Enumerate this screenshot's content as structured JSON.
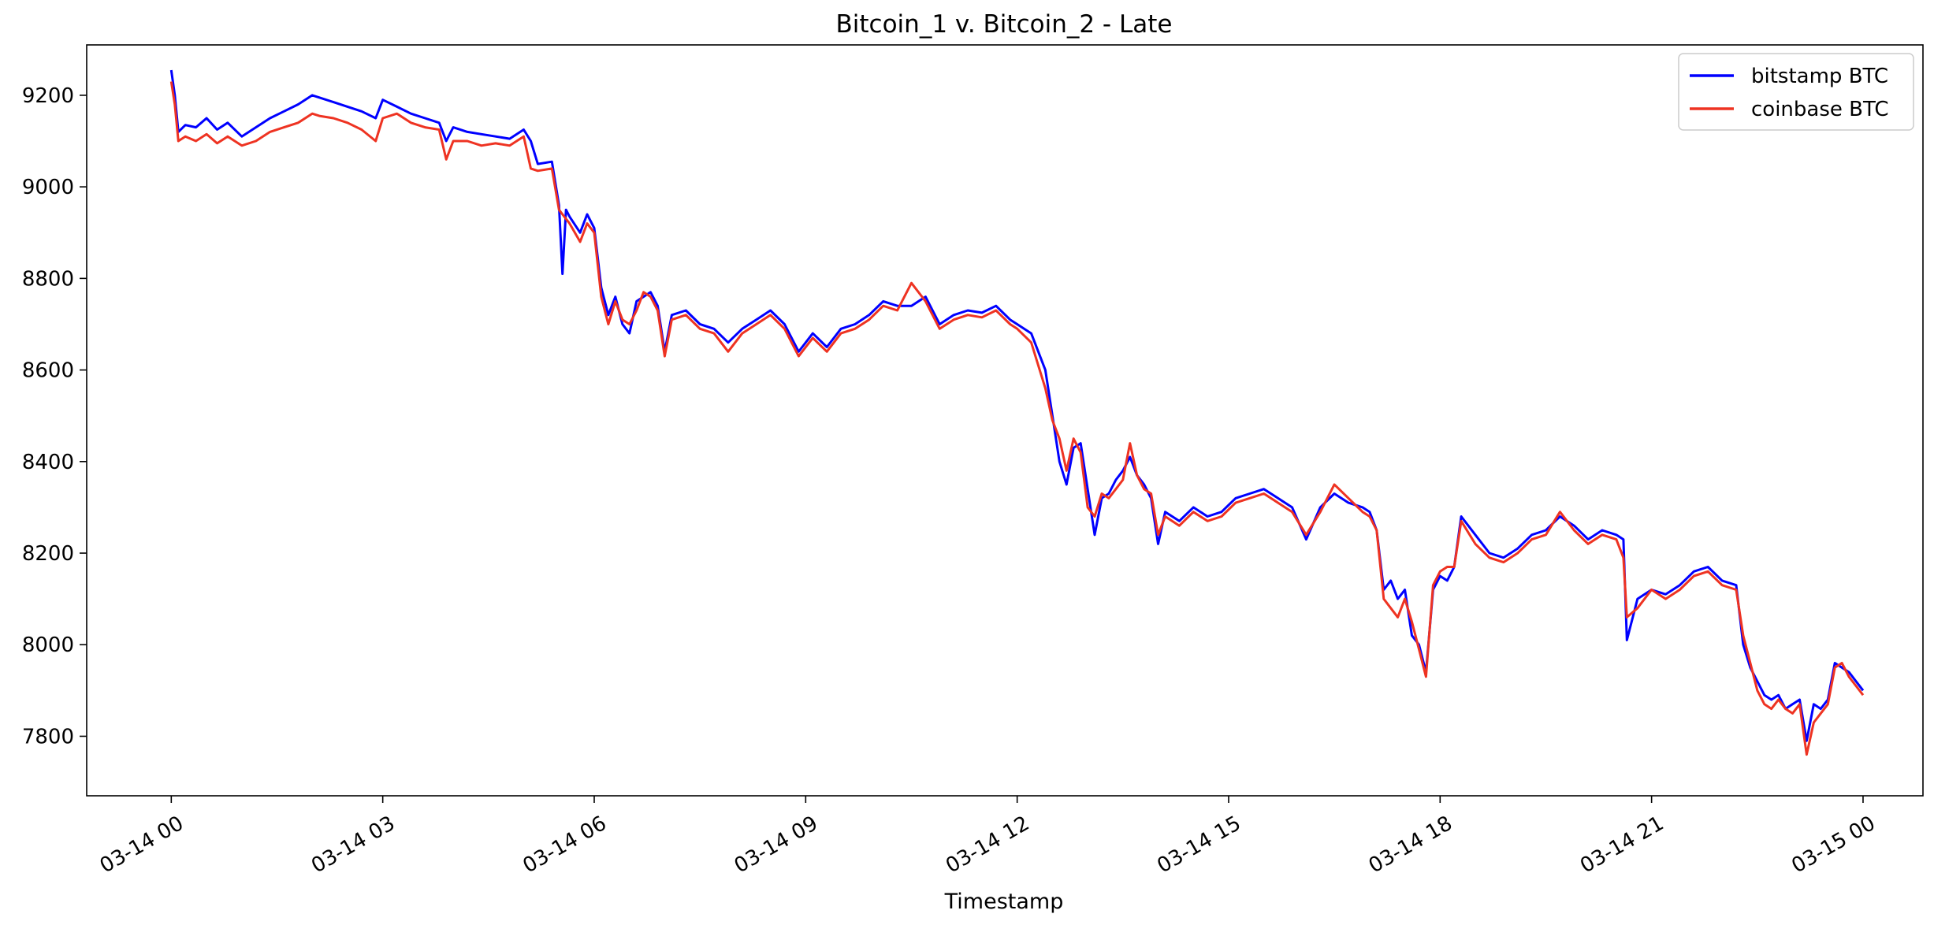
{
  "chart_data": {
    "type": "line",
    "title": "Bitcoin_1 v. Bitcoin_2 - Late",
    "xlabel": "Timestamp",
    "ylabel": "",
    "x_range_hours": [
      -1.2,
      24.85
    ],
    "ylim": [
      7670,
      9310
    ],
    "y_ticks": [
      7800,
      8000,
      8200,
      8400,
      8600,
      8800,
      9000,
      9200
    ],
    "x_ticks": [
      {
        "hour": 0,
        "label": "03-14 00"
      },
      {
        "hour": 3,
        "label": "03-14 03"
      },
      {
        "hour": 6,
        "label": "03-14 06"
      },
      {
        "hour": 9,
        "label": "03-14 09"
      },
      {
        "hour": 12,
        "label": "03-14 12"
      },
      {
        "hour": 15,
        "label": "03-14 15"
      },
      {
        "hour": 18,
        "label": "03-14 18"
      },
      {
        "hour": 21,
        "label": "03-14 21"
      },
      {
        "hour": 24,
        "label": "03-15 00"
      }
    ],
    "grid": false,
    "legend_position": "top-right",
    "series": [
      {
        "name": "bitstamp BTC",
        "color": "#0000ff",
        "x_hours": [
          0,
          0.05,
          0.1,
          0.2,
          0.35,
          0.5,
          0.65,
          0.8,
          1.0,
          1.2,
          1.4,
          1.6,
          1.8,
          2.0,
          2.1,
          2.3,
          2.5,
          2.7,
          2.9,
          3.0,
          3.2,
          3.4,
          3.6,
          3.8,
          3.9,
          4.0,
          4.2,
          4.4,
          4.6,
          4.8,
          5.0,
          5.1,
          5.2,
          5.4,
          5.5,
          5.55,
          5.6,
          5.65,
          5.8,
          5.9,
          6.0,
          6.1,
          6.2,
          6.3,
          6.4,
          6.5,
          6.6,
          6.7,
          6.8,
          6.9,
          7.0,
          7.1,
          7.3,
          7.5,
          7.7,
          7.9,
          8.1,
          8.3,
          8.5,
          8.7,
          8.9,
          9.1,
          9.3,
          9.5,
          9.7,
          9.9,
          10.1,
          10.3,
          10.5,
          10.7,
          10.9,
          11.1,
          11.3,
          11.5,
          11.7,
          11.9,
          12.0,
          12.2,
          12.4,
          12.5,
          12.6,
          12.7,
          12.8,
          12.9,
          13.0,
          13.1,
          13.2,
          13.3,
          13.4,
          13.5,
          13.6,
          13.7,
          13.8,
          13.9,
          14.0,
          14.1,
          14.3,
          14.5,
          14.7,
          14.9,
          15.1,
          15.3,
          15.5,
          15.7,
          15.9,
          16.1,
          16.3,
          16.5,
          16.7,
          16.9,
          17.0,
          17.1,
          17.2,
          17.3,
          17.4,
          17.5,
          17.6,
          17.7,
          17.8,
          17.9,
          18.0,
          18.1,
          18.2,
          18.3,
          18.5,
          18.7,
          18.9,
          19.1,
          19.3,
          19.5,
          19.7,
          19.9,
          20.1,
          20.3,
          20.5,
          20.6,
          20.65,
          20.8,
          21.0,
          21.2,
          21.4,
          21.6,
          21.8,
          22.0,
          22.2,
          22.3,
          22.4,
          22.5,
          22.6,
          22.7,
          22.8,
          22.9,
          23.0,
          23.1,
          23.2,
          23.3,
          23.4,
          23.5,
          23.6,
          23.7,
          23.8,
          23.9,
          24.0
        ],
        "values": [
          9255,
          9200,
          9120,
          9135,
          9130,
          9150,
          9125,
          9140,
          9110,
          9130,
          9150,
          9165,
          9180,
          9200,
          9195,
          9185,
          9175,
          9165,
          9150,
          9190,
          9175,
          9160,
          9150,
          9140,
          9100,
          9130,
          9120,
          9115,
          9110,
          9105,
          9125,
          9100,
          9050,
          9055,
          8960,
          8810,
          8950,
          8935,
          8900,
          8940,
          8910,
          8780,
          8720,
          8760,
          8700,
          8680,
          8750,
          8760,
          8770,
          8740,
          8640,
          8720,
          8730,
          8700,
          8690,
          8660,
          8690,
          8710,
          8730,
          8700,
          8640,
          8680,
          8650,
          8690,
          8700,
          8720,
          8750,
          8740,
          8740,
          8760,
          8700,
          8720,
          8730,
          8725,
          8740,
          8710,
          8700,
          8680,
          8600,
          8500,
          8400,
          8350,
          8430,
          8440,
          8340,
          8240,
          8320,
          8330,
          8360,
          8380,
          8410,
          8370,
          8350,
          8320,
          8220,
          8290,
          8270,
          8300,
          8280,
          8290,
          8320,
          8330,
          8340,
          8320,
          8300,
          8230,
          8300,
          8330,
          8310,
          8300,
          8290,
          8250,
          8120,
          8140,
          8100,
          8120,
          8020,
          8000,
          7940,
          8120,
          8150,
          8140,
          8170,
          8280,
          8240,
          8200,
          8190,
          8210,
          8240,
          8250,
          8280,
          8260,
          8230,
          8250,
          8240,
          8230,
          8010,
          8100,
          8120,
          8110,
          8130,
          8160,
          8170,
          8140,
          8130,
          8000,
          7950,
          7920,
          7890,
          7880,
          7890,
          7860,
          7870,
          7880,
          7790,
          7870,
          7860,
          7880,
          7960,
          7950,
          7940,
          7920,
          7900
        ]
      },
      {
        "name": "coinbase BTC",
        "color": "#ee3322",
        "x_hours": [
          0,
          0.05,
          0.1,
          0.2,
          0.35,
          0.5,
          0.65,
          0.8,
          1.0,
          1.2,
          1.4,
          1.6,
          1.8,
          2.0,
          2.1,
          2.3,
          2.5,
          2.7,
          2.9,
          3.0,
          3.2,
          3.4,
          3.6,
          3.8,
          3.9,
          4.0,
          4.2,
          4.4,
          4.6,
          4.8,
          5.0,
          5.1,
          5.2,
          5.4,
          5.5,
          5.55,
          5.6,
          5.65,
          5.8,
          5.9,
          6.0,
          6.1,
          6.2,
          6.3,
          6.4,
          6.5,
          6.6,
          6.7,
          6.8,
          6.9,
          7.0,
          7.1,
          7.3,
          7.5,
          7.7,
          7.9,
          8.1,
          8.3,
          8.5,
          8.7,
          8.9,
          9.1,
          9.3,
          9.5,
          9.7,
          9.9,
          10.1,
          10.3,
          10.5,
          10.7,
          10.9,
          11.1,
          11.3,
          11.5,
          11.7,
          11.9,
          12.0,
          12.2,
          12.4,
          12.5,
          12.6,
          12.7,
          12.8,
          12.9,
          13.0,
          13.1,
          13.2,
          13.3,
          13.4,
          13.5,
          13.6,
          13.7,
          13.8,
          13.9,
          14.0,
          14.1,
          14.3,
          14.5,
          14.7,
          14.9,
          15.1,
          15.3,
          15.5,
          15.7,
          15.9,
          16.1,
          16.3,
          16.5,
          16.7,
          16.9,
          17.0,
          17.1,
          17.2,
          17.3,
          17.4,
          17.5,
          17.6,
          17.7,
          17.8,
          17.9,
          18.0,
          18.1,
          18.2,
          18.3,
          18.5,
          18.7,
          18.9,
          19.1,
          19.3,
          19.5,
          19.7,
          19.9,
          20.1,
          20.3,
          20.5,
          20.6,
          20.65,
          20.8,
          21.0,
          21.2,
          21.4,
          21.6,
          21.8,
          22.0,
          22.2,
          22.3,
          22.4,
          22.5,
          22.6,
          22.7,
          22.8,
          22.9,
          23.0,
          23.1,
          23.2,
          23.3,
          23.4,
          23.5,
          23.6,
          23.7,
          23.8,
          23.9,
          24.0
        ],
        "values": [
          9230,
          9180,
          9100,
          9110,
          9100,
          9115,
          9095,
          9110,
          9090,
          9100,
          9120,
          9130,
          9140,
          9160,
          9155,
          9150,
          9140,
          9125,
          9100,
          9150,
          9160,
          9140,
          9130,
          9125,
          9060,
          9100,
          9100,
          9090,
          9095,
          9090,
          9110,
          9040,
          9035,
          9040,
          8950,
          8940,
          8930,
          8920,
          8880,
          8920,
          8900,
          8760,
          8700,
          8750,
          8710,
          8700,
          8730,
          8770,
          8760,
          8730,
          8630,
          8710,
          8720,
          8690,
          8680,
          8640,
          8680,
          8700,
          8720,
          8690,
          8630,
          8670,
          8640,
          8680,
          8690,
          8710,
          8740,
          8730,
          8790,
          8750,
          8690,
          8710,
          8720,
          8715,
          8730,
          8700,
          8690,
          8660,
          8560,
          8490,
          8450,
          8380,
          8450,
          8420,
          8300,
          8280,
          8330,
          8320,
          8340,
          8360,
          8440,
          8370,
          8340,
          8330,
          8240,
          8280,
          8260,
          8290,
          8270,
          8280,
          8310,
          8320,
          8330,
          8310,
          8290,
          8240,
          8290,
          8350,
          8320,
          8290,
          8280,
          8250,
          8100,
          8080,
          8060,
          8100,
          8050,
          7990,
          7930,
          8130,
          8160,
          8170,
          8170,
          8270,
          8220,
          8190,
          8180,
          8200,
          8230,
          8240,
          8290,
          8250,
          8220,
          8240,
          8230,
          8190,
          8060,
          8080,
          8120,
          8100,
          8120,
          8150,
          8160,
          8130,
          8120,
          8020,
          7960,
          7900,
          7870,
          7860,
          7880,
          7860,
          7850,
          7870,
          7760,
          7830,
          7850,
          7870,
          7950,
          7960,
          7930,
          7910,
          7890
        ]
      }
    ]
  }
}
